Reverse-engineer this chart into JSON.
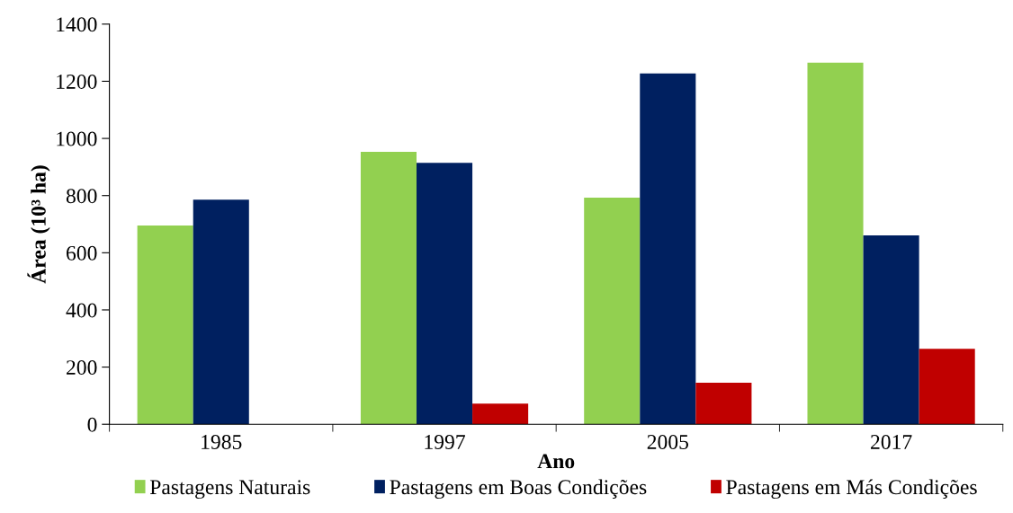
{
  "chart_data": {
    "type": "bar",
    "xlabel": "Ano",
    "ylabel": "Área (10³ ha)",
    "categories": [
      "1985",
      "1997",
      "2005",
      "2017"
    ],
    "series": [
      {
        "name": "Pastagens Naturais",
        "color": "#92d050",
        "values": [
          695,
          953,
          793,
          1265
        ]
      },
      {
        "name": "Pastagens em Boas Condições",
        "color": "#002060",
        "values": [
          786,
          915,
          1227,
          661
        ]
      },
      {
        "name": "Pastagens em Más Condições",
        "color": "#c00000",
        "values": [
          null,
          72,
          145,
          264
        ]
      }
    ],
    "ylim": [
      0,
      1400
    ],
    "yticks": [
      0,
      200,
      400,
      600,
      800,
      1000,
      1200,
      1400
    ],
    "grid": false,
    "legend": "bottom"
  }
}
